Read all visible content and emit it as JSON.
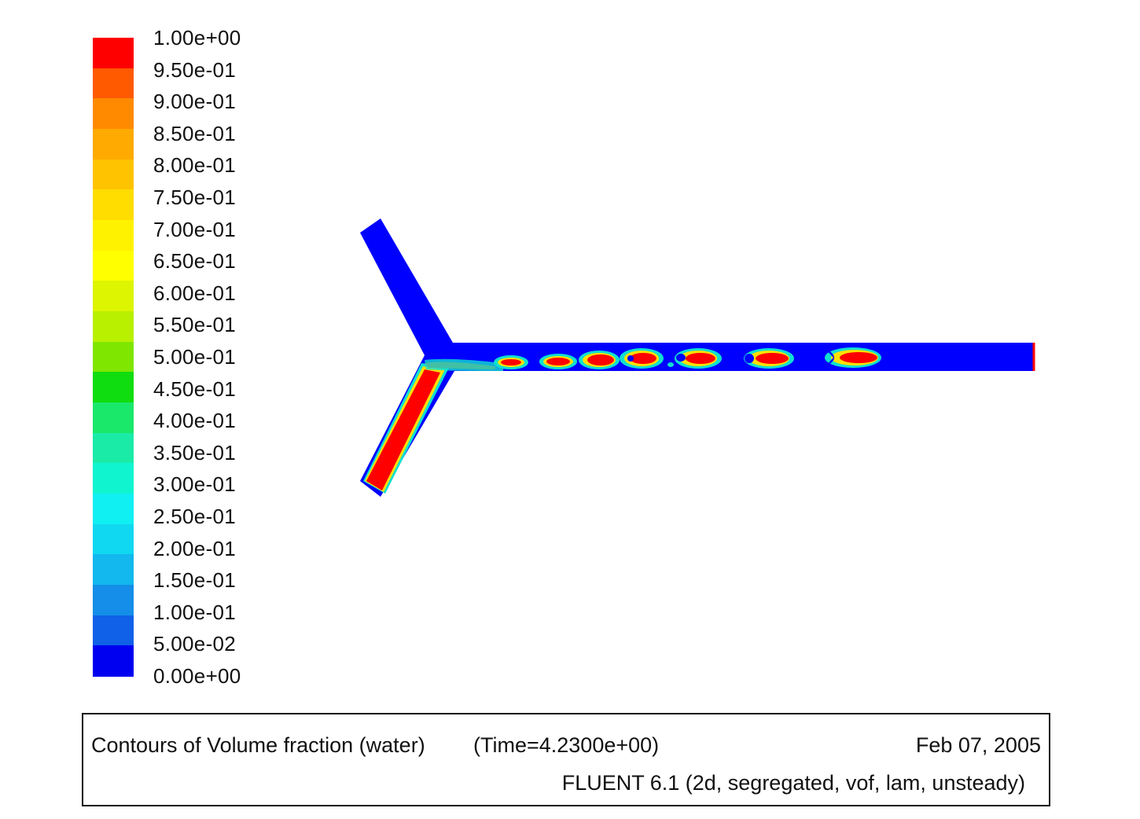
{
  "colorbar": {
    "labels": [
      "1.00e+00",
      "9.50e-01",
      "9.00e-01",
      "8.50e-01",
      "8.00e-01",
      "7.50e-01",
      "7.00e-01",
      "6.50e-01",
      "6.00e-01",
      "5.50e-01",
      "5.00e-01",
      "4.50e-01",
      "4.00e-01",
      "3.50e-01",
      "3.00e-01",
      "2.50e-01",
      "2.00e-01",
      "1.50e-01",
      "1.00e-01",
      "5.00e-02",
      "0.00e+00"
    ],
    "colors": [
      "#ff0000",
      "#ff5a00",
      "#ff8a00",
      "#ffaa00",
      "#ffc300",
      "#ffdd00",
      "#fff200",
      "#ffff00",
      "#ddf500",
      "#b8f000",
      "#7fe600",
      "#10dd10",
      "#1ae86a",
      "#1aeca8",
      "#10f5d0",
      "#10f0f2",
      "#10d8f0",
      "#12b8ee",
      "#148ee8",
      "#1060e8",
      "#0000f0"
    ]
  },
  "contour": {
    "background_color": "#0000ff",
    "water_color": "#ff0000"
  },
  "caption": {
    "title": "Contours of Volume fraction (water)",
    "time": "(Time=4.2300e+00)",
    "date": "Feb 07, 2005",
    "solver": "FLUENT 6.1 (2d, segregated, vof, lam, unsteady)"
  }
}
